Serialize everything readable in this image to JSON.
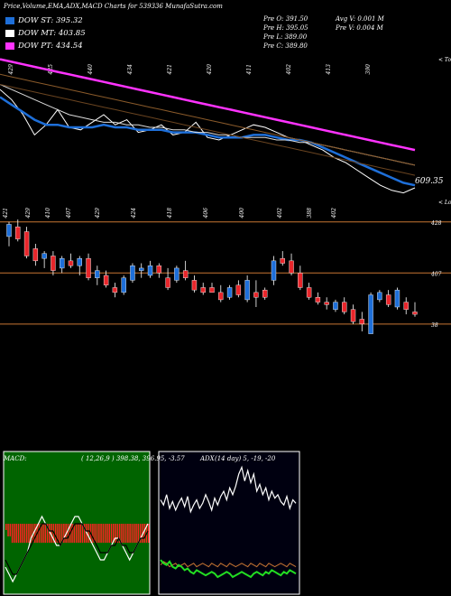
{
  "header": {
    "title": "Price,Volume,EMA,ADX,MACD Charts for 539336  MunafaSutra.com",
    "stats": [
      {
        "k": "Pre  O:",
        "v": "391.50"
      },
      {
        "k": "Pre  H:",
        "v": "395.05"
      },
      {
        "k": "Pre  L:",
        "v": "389.00"
      },
      {
        "k": "Pre  C:",
        "v": "389.80"
      }
    ],
    "avg_v": "Avg V: 0.001 M",
    "pre_v": "Pre  V: 0.004  M"
  },
  "legend": [
    {
      "label": "DOW ST: 395.32",
      "color": "#1e6fd9"
    },
    {
      "label": "DOW MT: 403.85",
      "color": "#ffffff"
    },
    {
      "label": "DOW PT: 434.54",
      "color": "#ff33ff"
    }
  ],
  "colors": {
    "up": "#1e6fd9",
    "down": "#e8262b",
    "level": "#c87533",
    "pt": "#ff33ff",
    "st": "#1e6fd9"
  },
  "chart_data": [
    {
      "type": "line",
      "panel": "ema",
      "top_labels": [
        "429",
        "425",
        "440",
        "434",
        "421",
        "420",
        "411",
        "402",
        "413",
        "390"
      ],
      "bottom_labels": [
        "421",
        "429",
        "410",
        "407",
        "429",
        "424",
        "418",
        "406",
        "400",
        "402",
        "388",
        "402"
      ],
      "right_label": "609.35",
      "right_top_label": "< Topo",
      "right_bottom_label": "< Lowes",
      "series": [
        {
          "role": "price",
          "values": [
            428,
            424,
            418,
            410,
            414,
            420,
            413,
            412,
            415,
            418,
            414,
            416,
            411,
            412,
            414,
            410,
            411,
            415,
            409,
            408,
            410,
            412,
            414,
            413,
            411,
            409,
            408,
            406,
            404,
            401,
            399,
            396,
            393,
            390,
            388,
            387,
            389
          ]
        },
        {
          "role": "ema_st",
          "values": [
            425,
            422,
            419,
            416,
            414,
            414,
            413,
            413,
            413,
            414,
            413,
            413,
            412,
            412,
            412,
            411,
            411,
            411,
            410,
            409,
            409,
            409,
            410,
            410,
            409,
            408,
            408,
            407,
            405,
            403,
            401,
            399,
            397,
            395,
            393,
            391,
            390
          ]
        },
        {
          "role": "ema_mt",
          "values": [
            430,
            428,
            426,
            424,
            422,
            420,
            418,
            417,
            416,
            415,
            415,
            414,
            414,
            413,
            413,
            412,
            412,
            411,
            411,
            410,
            410,
            409,
            409,
            409,
            408,
            408,
            407,
            407,
            406,
            405,
            404,
            403,
            402,
            401,
            400,
            399,
            398
          ]
        },
        {
          "role": "ema_pt",
          "values": [
            440,
            439,
            438,
            437,
            436,
            435,
            434,
            433,
            432,
            431,
            430,
            429,
            428,
            427,
            426,
            425,
            424,
            423,
            422,
            421,
            420,
            419,
            418,
            417,
            416,
            415,
            414,
            413,
            412,
            411,
            410,
            409,
            408,
            407,
            406,
            405,
            404
          ]
        }
      ]
    },
    {
      "type": "candlestick",
      "panel": "price",
      "levels": [
        {
          "label": "428",
          "value": 428
        },
        {
          "label": "407",
          "value": 407
        },
        {
          "label": "38",
          "value": 386
        }
      ],
      "candles": [
        {
          "o": 422,
          "h": 428,
          "l": 418,
          "c": 427
        },
        {
          "o": 426,
          "h": 429,
          "l": 420,
          "c": 421
        },
        {
          "o": 424,
          "h": 426,
          "l": 413,
          "c": 414
        },
        {
          "o": 417,
          "h": 419,
          "l": 410,
          "c": 412
        },
        {
          "o": 413,
          "h": 416,
          "l": 409,
          "c": 415
        },
        {
          "o": 414,
          "h": 416,
          "l": 406,
          "c": 408
        },
        {
          "o": 409,
          "h": 414,
          "l": 407,
          "c": 413
        },
        {
          "o": 412,
          "h": 415,
          "l": 409,
          "c": 410
        },
        {
          "o": 410,
          "h": 414,
          "l": 406,
          "c": 413
        },
        {
          "o": 413,
          "h": 415,
          "l": 404,
          "c": 405
        },
        {
          "o": 405,
          "h": 410,
          "l": 402,
          "c": 408
        },
        {
          "o": 406,
          "h": 408,
          "l": 401,
          "c": 402
        },
        {
          "o": 401,
          "h": 403,
          "l": 397,
          "c": 399
        },
        {
          "o": 399,
          "h": 406,
          "l": 398,
          "c": 405
        },
        {
          "o": 404,
          "h": 411,
          "l": 403,
          "c": 410
        },
        {
          "o": 408,
          "h": 411,
          "l": 405,
          "c": 409
        },
        {
          "o": 406,
          "h": 412,
          "l": 405,
          "c": 410
        },
        {
          "o": 410,
          "h": 411,
          "l": 405,
          "c": 407
        },
        {
          "o": 405,
          "h": 409,
          "l": 400,
          "c": 401
        },
        {
          "o": 404,
          "h": 410,
          "l": 403,
          "c": 409
        },
        {
          "o": 408,
          "h": 412,
          "l": 404,
          "c": 405
        },
        {
          "o": 404,
          "h": 406,
          "l": 399,
          "c": 400
        },
        {
          "o": 401,
          "h": 403,
          "l": 398,
          "c": 399
        },
        {
          "o": 401,
          "h": 403,
          "l": 399,
          "c": 399
        },
        {
          "o": 399,
          "h": 402,
          "l": 395,
          "c": 396
        },
        {
          "o": 397,
          "h": 402,
          "l": 396,
          "c": 401
        },
        {
          "o": 402,
          "h": 404,
          "l": 397,
          "c": 398
        },
        {
          "o": 396,
          "h": 406,
          "l": 395,
          "c": 404
        },
        {
          "o": 399,
          "h": 404,
          "l": 393,
          "c": 397
        },
        {
          "o": 400,
          "h": 401,
          "l": 396,
          "c": 397
        },
        {
          "o": 404,
          "h": 414,
          "l": 402,
          "c": 412
        },
        {
          "o": 413,
          "h": 416,
          "l": 410,
          "c": 411
        },
        {
          "o": 412,
          "h": 415,
          "l": 406,
          "c": 407
        },
        {
          "o": 407,
          "h": 410,
          "l": 400,
          "c": 401
        },
        {
          "o": 401,
          "h": 403,
          "l": 396,
          "c": 397
        },
        {
          "o": 397,
          "h": 399,
          "l": 394,
          "c": 395
        },
        {
          "o": 395,
          "h": 397,
          "l": 392,
          "c": 394
        },
        {
          "o": 392,
          "h": 396,
          "l": 391,
          "c": 395
        },
        {
          "o": 395,
          "h": 397,
          "l": 390,
          "c": 391
        },
        {
          "o": 392,
          "h": 394,
          "l": 386,
          "c": 387
        },
        {
          "o": 388,
          "h": 391,
          "l": 383,
          "c": 386
        },
        {
          "o": 382,
          "h": 399,
          "l": 382,
          "c": 398
        },
        {
          "o": 396,
          "h": 400,
          "l": 395,
          "c": 399
        },
        {
          "o": 398,
          "h": 400,
          "l": 393,
          "c": 394
        },
        {
          "o": 393,
          "h": 401,
          "l": 392,
          "c": 400
        },
        {
          "o": 395,
          "h": 397,
          "l": 390,
          "c": 392
        },
        {
          "o": 391,
          "h": 395,
          "l": 389,
          "c": 390
        }
      ]
    },
    {
      "type": "area",
      "panel": "macd",
      "label": "MACD:",
      "readout": "( 12,26,9 ) 398.38, 396.95, -3.57 ",
      "series": [
        {
          "role": "histogram",
          "values": [
            -1,
            -2,
            -2,
            -3,
            -3,
            -3,
            -3,
            -3,
            -3,
            -3,
            -3,
            -3,
            -3,
            -3,
            -3,
            -3,
            -3,
            -3,
            -3,
            -3,
            -3,
            -3,
            -3,
            -3,
            -3,
            -3,
            -3,
            -3,
            -3,
            -3,
            -3,
            -3,
            -3,
            -3,
            -3,
            -3,
            -3,
            -3,
            -3,
            -3,
            -3,
            -3,
            -3,
            -3,
            -3,
            -3,
            -3,
            -3,
            -3,
            -3,
            -3,
            -3,
            -3,
            -3,
            -3,
            -3,
            -3,
            -3,
            -3,
            -3,
            -3,
            -3,
            -3,
            -3,
            -3,
            -3,
            -3,
            -3,
            -3,
            -3
          ]
        },
        {
          "role": "macd",
          "values": [
            -6,
            -7,
            -8,
            -7,
            -6,
            -5,
            -4,
            -2,
            -1,
            0,
            1,
            0,
            -1,
            -2,
            -3,
            -3,
            -2,
            -1,
            0,
            1,
            1,
            0,
            -1,
            -2,
            -3,
            -4,
            -5,
            -5,
            -4,
            -3,
            -2,
            -2,
            -3,
            -4,
            -5,
            -4,
            -3,
            -2,
            -1,
            0
          ]
        },
        {
          "role": "signal",
          "values": [
            -5,
            -6,
            -7,
            -7,
            -6,
            -5,
            -4,
            -3,
            -2,
            -1,
            0,
            0,
            -1,
            -1,
            -2,
            -3,
            -2,
            -2,
            -1,
            0,
            0,
            0,
            -1,
            -1,
            -2,
            -3,
            -4,
            -4,
            -4,
            -3,
            -3,
            -2,
            -3,
            -3,
            -4,
            -4,
            -3,
            -2,
            -2,
            -1
          ]
        }
      ]
    },
    {
      "type": "line",
      "panel": "adx",
      "label": "ADX",
      "readout": "(14  day) 5, -19, -20",
      "series": [
        {
          "role": "adx",
          "values": [
            55,
            52,
            58,
            50,
            54,
            49,
            53,
            56,
            51,
            57,
            48,
            52,
            55,
            50,
            53,
            58,
            54,
            49,
            56,
            52,
            57,
            60,
            55,
            62,
            58,
            63,
            70,
            74,
            66,
            72,
            65,
            70,
            60,
            64,
            58,
            62,
            55,
            60,
            56,
            58,
            54,
            52,
            57,
            50,
            55,
            53
          ]
        },
        {
          "role": "di_plus",
          "values": [
            20,
            18,
            17,
            19,
            16,
            15,
            17,
            16,
            14,
            15,
            13,
            12,
            14,
            13,
            12,
            11,
            12,
            13,
            12,
            10,
            11,
            12,
            13,
            12,
            10,
            11,
            12,
            13,
            12,
            11,
            10,
            12,
            13,
            12,
            11,
            13,
            12,
            14,
            13,
            12,
            11,
            13,
            12,
            14,
            13,
            12
          ]
        },
        {
          "role": "di_minus",
          "values": [
            17,
            19,
            18,
            16,
            17,
            18,
            16,
            17,
            18,
            16,
            17,
            18,
            16,
            17,
            18,
            17,
            16,
            18,
            17,
            16,
            18,
            17,
            16,
            18,
            17,
            16,
            17,
            18,
            17,
            16,
            18,
            17,
            16,
            18,
            17,
            16,
            18,
            17,
            16,
            17,
            18,
            17,
            16,
            18,
            17,
            16
          ]
        }
      ]
    }
  ]
}
